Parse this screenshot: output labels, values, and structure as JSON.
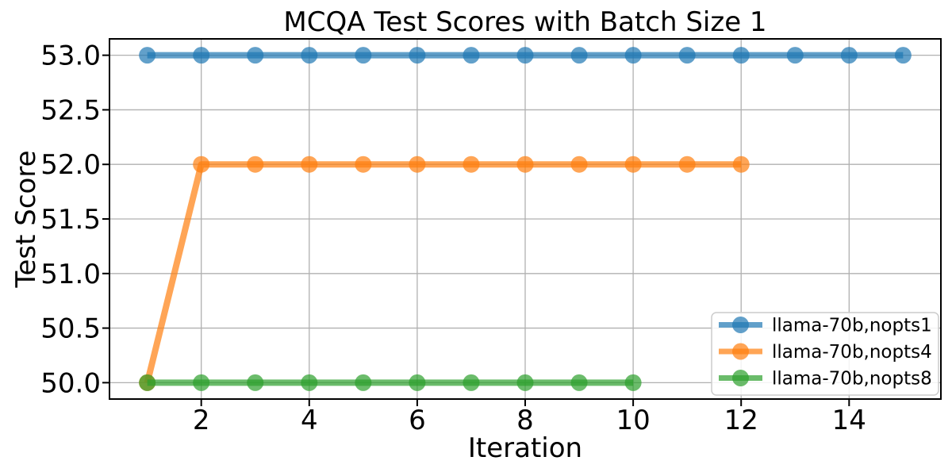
{
  "figure": {
    "background": "#ffffff"
  },
  "chart_data": {
    "type": "line",
    "title": "MCQA Test Scores with Batch Size 1",
    "xlabel": "Iteration",
    "ylabel": "Test Score",
    "xlim": [
      0.3,
      15.7
    ],
    "ylim": [
      49.85,
      53.15
    ],
    "xticks": [
      2,
      4,
      6,
      8,
      10,
      12,
      14
    ],
    "xtick_labels": [
      "2",
      "4",
      "6",
      "8",
      "10",
      "12",
      "14"
    ],
    "yticks": [
      50.0,
      50.5,
      51.0,
      51.5,
      52.0,
      52.5,
      53.0
    ],
    "ytick_labels": [
      "50.0",
      "50.5",
      "51.0",
      "51.5",
      "52.0",
      "52.5",
      "53.0"
    ],
    "grid": true,
    "grid_color": "#b0b0b0",
    "spine_color": "#000000",
    "line_alpha": 0.7,
    "line_width": 8,
    "marker": "circle",
    "marker_radius": 10.5,
    "legend_position": "lower right",
    "series": [
      {
        "name": "llama-70b,nopts1",
        "color": "#1f77b4",
        "x": [
          1,
          2,
          3,
          4,
          5,
          6,
          7,
          8,
          9,
          10,
          11,
          12,
          13,
          14,
          15
        ],
        "y": [
          53.0,
          53.0,
          53.0,
          53.0,
          53.0,
          53.0,
          53.0,
          53.0,
          53.0,
          53.0,
          53.0,
          53.0,
          53.0,
          53.0,
          53.0
        ]
      },
      {
        "name": "llama-70b,nopts4",
        "color": "#ff7f0e",
        "x": [
          1,
          2,
          3,
          4,
          5,
          6,
          7,
          8,
          9,
          10,
          11,
          12
        ],
        "y": [
          50.0,
          52.0,
          52.0,
          52.0,
          52.0,
          52.0,
          52.0,
          52.0,
          52.0,
          52.0,
          52.0,
          52.0
        ]
      },
      {
        "name": "llama-70b,nopts8",
        "color": "#2ca02c",
        "x": [
          1,
          2,
          3,
          4,
          5,
          6,
          7,
          8,
          9,
          10
        ],
        "y": [
          50.0,
          50.0,
          50.0,
          50.0,
          50.0,
          50.0,
          50.0,
          50.0,
          50.0,
          50.0
        ]
      }
    ]
  }
}
